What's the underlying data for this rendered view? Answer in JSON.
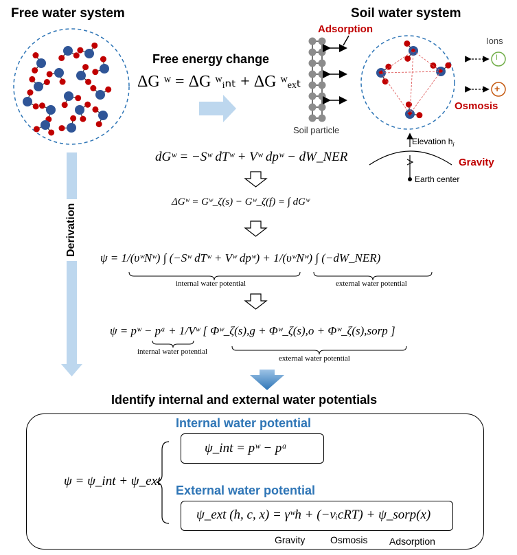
{
  "titles": {
    "free_water": "Free water system",
    "soil_water": "Soil water system",
    "free_energy": "Free energy change",
    "identify": "Identify internal and external water potentials"
  },
  "labels": {
    "adsorption_top": "Adsorption",
    "ions": "Ions",
    "osmosis_right": "Osmosis",
    "soil_particle": "Soil particle",
    "elevation": "Elevation h",
    "elevation_sub": "i",
    "gravity_right": "Gravity",
    "earth_center": "Earth center",
    "derivation": "Derivation",
    "ion_neg": "I",
    "ion_pos": "+"
  },
  "equations": {
    "eq_delta_g": "ΔG ʷ = ΔG ʷᵢₙₜ + ΔG ʷₑₓₜ",
    "eq_dg": "dGʷ = −Sʷ dTʷ + Vʷ dpʷ − dW_NER",
    "eq_integral": "ΔGʷ = Gʷ_ζ(s) − Gʷ_ζ(f) = ∫ dGʷ",
    "eq_psi_1": "ψ = 1/(υʷNʷ) ∫ (−Sʷ dTʷ + Vʷ dpʷ) + 1/(υʷNʷ) ∫ (−dW_NER)",
    "eq_psi_2": "ψ = pʷ − pᵃ + 1/Vʷ [ Φʷ_ζ(s),g + Φʷ_ζ(s),o + Φʷ_ζ(s),sorp ]",
    "eq_psi_total": "ψ = ψ_int + ψ_ext",
    "eq_psi_int": "ψ_int = pʷ − pᵃ",
    "eq_psi_ext": "ψ_ext (h, c, x) = γʷh + (−νᵢcRT) + ψ_sorp(x)"
  },
  "captions": {
    "internal_1": "internal water potential",
    "external_1": "external water potential",
    "internal_2": "internal water potential",
    "external_2": "external water potential"
  },
  "box": {
    "internal_title": "Internal water potential",
    "external_title": "External water potential",
    "under_gravity": "Gravity",
    "under_osmosis": "Osmosis",
    "under_adsorption": "Adsorption"
  },
  "colors": {
    "oxygen": "#2f5597",
    "hydrogen": "#c00000",
    "accent_blue": "#2e75b6",
    "accent_red": "#c00000",
    "arrow_light": "#bdd7ee"
  }
}
